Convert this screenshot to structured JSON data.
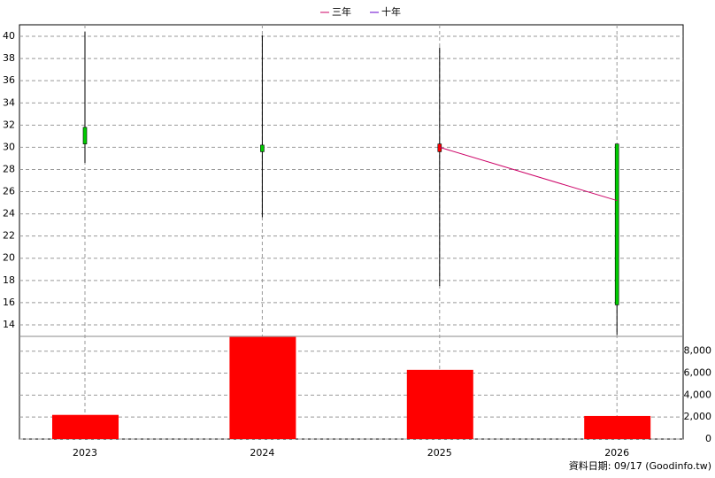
{
  "chart_data": [
    {
      "type": "candlestick",
      "legend": "top",
      "grid": true,
      "open": [
        31.8,
        30.2,
        29.6,
        30.3
      ],
      "high": [
        40.4,
        40.1,
        39.0,
        30.3
      ],
      "low": [
        28.6,
        23.7,
        17.5,
        13.1
      ],
      "close": [
        30.3,
        29.6,
        30.3,
        15.8
      ],
      "up_color": "#ff0000",
      "down_color": "#00cc00",
      "series": [
        {
          "name": "三年",
          "color": "#cc0066",
          "values": [
            null,
            null,
            30.0,
            25.2
          ]
        },
        {
          "name": "十年",
          "color": "#6600cc",
          "values": [
            null,
            null,
            null,
            null
          ]
        }
      ],
      "ylim": [
        12.96,
        41.04
      ],
      "yticks": [
        14,
        16,
        18,
        20,
        22,
        24,
        26,
        28,
        30,
        32,
        34,
        36,
        38,
        40
      ]
    },
    {
      "type": "bar",
      "grid": true,
      "color": "#ff0000",
      "categories": [
        "2023",
        "2024",
        "2025",
        "2026"
      ],
      "values": [
        2200,
        9300,
        6300,
        2100
      ],
      "ylim": [
        0,
        9350
      ],
      "yticks": [
        0,
        {
          "value": 2000,
          "label": "2,000"
        },
        {
          "value": 4000,
          "label": "4,000"
        },
        {
          "value": 6000,
          "label": "6,000"
        },
        {
          "value": 8000,
          "label": "8,000"
        }
      ]
    }
  ],
  "footnote": "資料日期: 09/17  (Goodinfo.tw)"
}
